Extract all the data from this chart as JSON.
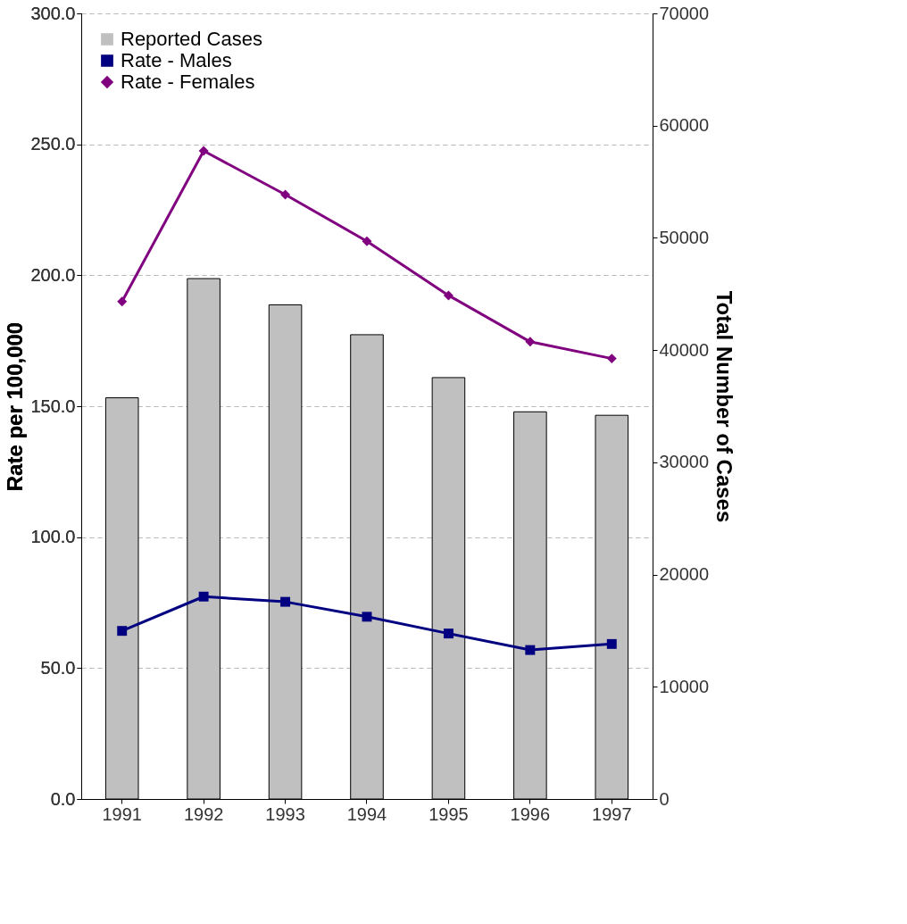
{
  "chart_data": {
    "type": "bar",
    "categories": [
      "1991",
      "1992",
      "1993",
      "1994",
      "1995",
      "1996",
      "1997"
    ],
    "ylabel": "Rate per 100,000",
    "y2label": "Total Number of Cases",
    "ylim": [
      0,
      300
    ],
    "yticks": [
      {
        "value": 0,
        "label": "0.0"
      },
      {
        "value": 50,
        "label": "50.0"
      },
      {
        "value": 100,
        "label": "100.0"
      },
      {
        "value": 150,
        "label": "150.0"
      },
      {
        "value": 200,
        "label": "200.0"
      },
      {
        "value": 250,
        "label": "250.0"
      },
      {
        "value": 300,
        "label": "300.0"
      }
    ],
    "y2lim": [
      0,
      70000
    ],
    "y2ticks": [
      0,
      10000,
      20000,
      30000,
      40000,
      50000,
      60000,
      70000
    ],
    "grid": "y",
    "legend": "top left",
    "series": [
      {
        "name": "Reported Cases",
        "axis": "y2",
        "color": "#c0c0c0",
        "values": [
          35750,
          46370,
          44030,
          41370,
          37550,
          34500,
          34190
        ]
      },
      {
        "name": "Rate - Males",
        "type": "line",
        "marker": "square",
        "color": "#000080",
        "values": [
          64.2,
          77.3,
          75.3,
          69.6,
          63.2,
          56.9,
          59.2
        ]
      },
      {
        "name": "Rate - Females",
        "type": "line",
        "marker": "diamond",
        "color": "#800080",
        "values": [
          190.0,
          247.5,
          230.8,
          213.0,
          192.3,
          174.6,
          168.2
        ]
      }
    ]
  }
}
